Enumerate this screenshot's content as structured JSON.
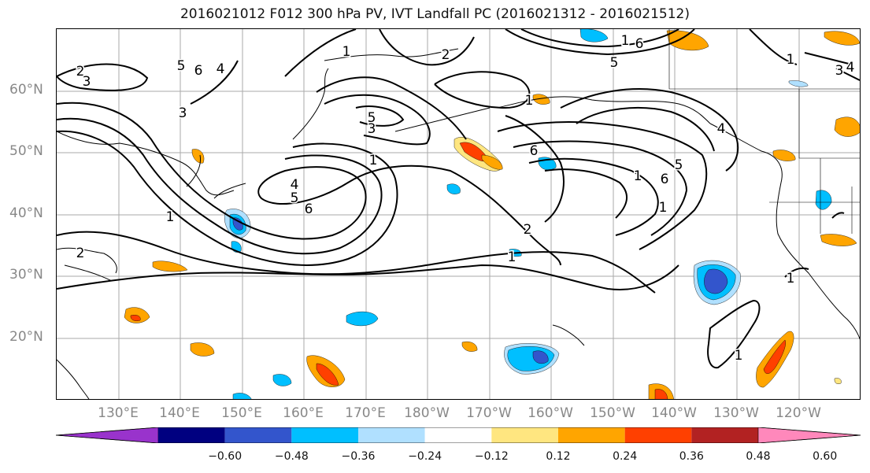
{
  "title": "2016021012 F012 300 hPa PV, IVT Landfall PC (2016021312 - 2016021512)",
  "lat_labels": [
    "60°N",
    "50°N",
    "40°N",
    "30°N",
    "20°N"
  ],
  "lon_labels": [
    "130°E",
    "140°E",
    "150°E",
    "160°E",
    "170°E",
    "180°W",
    "170°W",
    "160°W",
    "150°W",
    "140°W",
    "130°W",
    "120°W"
  ],
  "colorbar": {
    "ticks": [
      "−0.60",
      "−0.48",
      "−0.36",
      "−0.24",
      "−0.12",
      "0.12",
      "0.24",
      "0.36",
      "0.48",
      "0.60"
    ],
    "colors": [
      "#9933cc",
      "#000080",
      "#3355cc",
      "#00bfff",
      "#b0e0ff",
      "#ffffff",
      "#ffe680",
      "#ffa500",
      "#ff4000",
      "#b22222",
      "#ff88bb"
    ]
  },
  "contour_labels": [
    "2",
    "3",
    "5",
    "6",
    "4",
    "3",
    "5",
    "3",
    "1",
    "1",
    "4",
    "5",
    "6",
    "2",
    "1",
    "1",
    "6",
    "5",
    "6",
    "1",
    "2",
    "1",
    "1",
    "1",
    "2",
    "5",
    "6",
    "1",
    "4",
    "3",
    "4",
    "1",
    "1"
  ]
}
